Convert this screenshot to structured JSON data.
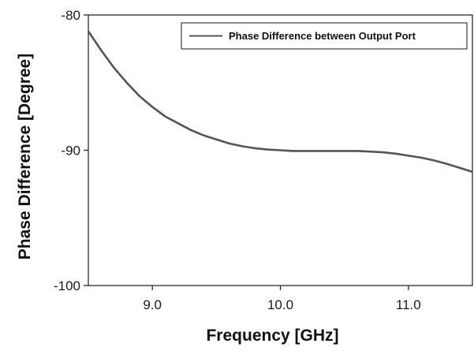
{
  "chart_data": {
    "type": "line",
    "title": "",
    "xlabel": "Frequency [GHz]",
    "ylabel": "Phase Difference [Degree]",
    "xlim": [
      8.5,
      11.5
    ],
    "ylim": [
      -100,
      -80
    ],
    "x_ticks": [
      9.0,
      10.0,
      11.0
    ],
    "x_tick_labels": [
      "9.0",
      "10.0",
      "11.0"
    ],
    "y_ticks": [
      -100,
      -90,
      -80
    ],
    "y_tick_labels": [
      "-100",
      "-90",
      "-80"
    ],
    "grid": false,
    "legend_position": "top-right",
    "series": [
      {
        "name": "Phase Difference between Output Port",
        "color": "#555555",
        "x": [
          8.5,
          8.6,
          8.7,
          8.8,
          8.9,
          9.0,
          9.1,
          9.2,
          9.3,
          9.4,
          9.5,
          9.6,
          9.7,
          9.8,
          9.9,
          10.0,
          10.1,
          10.2,
          10.3,
          10.4,
          10.5,
          10.6,
          10.7,
          10.8,
          10.9,
          11.0,
          11.1,
          11.2,
          11.3,
          11.4,
          11.5
        ],
        "y": [
          -81.2,
          -82.6,
          -83.9,
          -85.0,
          -86.0,
          -86.8,
          -87.5,
          -88.0,
          -88.5,
          -88.9,
          -89.2,
          -89.5,
          -89.7,
          -89.85,
          -89.95,
          -90.0,
          -90.05,
          -90.05,
          -90.05,
          -90.05,
          -90.05,
          -90.05,
          -90.1,
          -90.15,
          -90.25,
          -90.4,
          -90.55,
          -90.75,
          -91.0,
          -91.3,
          -91.6
        ]
      }
    ]
  }
}
